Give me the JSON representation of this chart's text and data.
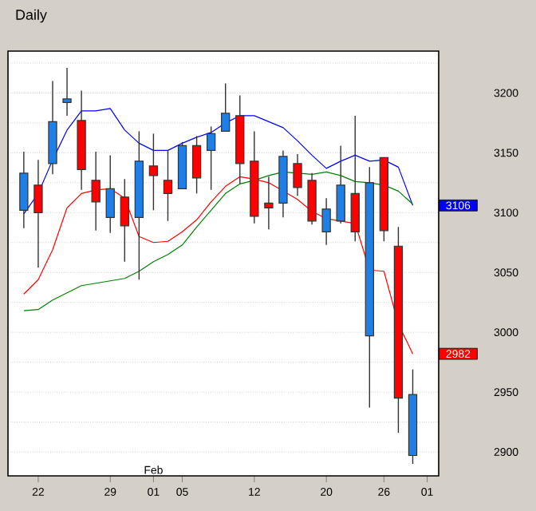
{
  "chart_data": {
    "type": "candlestick",
    "title": "Daily",
    "categories": [
      null,
      "22",
      null,
      null,
      null,
      null,
      "29",
      null,
      null,
      "01",
      null,
      "05",
      null,
      null,
      null,
      null,
      "12",
      null,
      null,
      null,
      null,
      "20",
      null,
      null,
      null,
      "26",
      null,
      null,
      "01"
    ],
    "ohlc": [
      [
        3102,
        3151,
        3087,
        3133
      ],
      [
        3123,
        3144,
        3054,
        3100
      ],
      [
        3141,
        3210,
        3132,
        3176
      ],
      [
        3192,
        3221,
        3181,
        3195
      ],
      [
        3177,
        3202,
        3119,
        3136
      ],
      [
        3127,
        3151,
        3085,
        3109
      ],
      [
        3096,
        3148,
        3083,
        3120
      ],
      [
        3113,
        3128,
        3059,
        3089
      ],
      [
        3096,
        3168,
        3044,
        3143
      ],
      [
        3139,
        3166,
        3102,
        3131
      ],
      [
        3127,
        3152,
        3093,
        3116
      ],
      [
        3120,
        3159,
        3120,
        3156
      ],
      [
        3156,
        3164,
        3116,
        3129
      ],
      [
        3152,
        3172,
        3119,
        3166
      ],
      [
        3168,
        3208,
        3168,
        3183
      ],
      [
        3181,
        3198,
        3124,
        3141
      ],
      [
        3143,
        3168,
        3091,
        3097
      ],
      [
        3108,
        3130,
        3086,
        3104
      ],
      [
        3108,
        3152,
        3096,
        3147
      ],
      [
        3141,
        3149,
        3114,
        3121
      ],
      [
        3127,
        3133,
        3090,
        3093
      ],
      [
        3084,
        3112,
        3073,
        3103
      ],
      [
        3093,
        3156,
        3091,
        3123
      ],
      [
        3116,
        3181,
        3076,
        3084
      ],
      [
        2997,
        3138,
        2937,
        3125
      ],
      [
        3146,
        3146,
        3076,
        3085
      ],
      [
        3072,
        3088,
        2916,
        2945
      ],
      [
        2897,
        2969,
        2890,
        2948
      ],
      null
    ],
    "colors": [
      "#1e7fe6",
      "#ff0000",
      "#1e7fe6",
      "#1e7fe6",
      "#ff0000",
      "#ff0000",
      "#1e7fe6",
      "#ff0000",
      "#1e7fe6",
      "#ff0000",
      "#ff0000",
      "#1e7fe6",
      "#ff0000",
      "#1e7fe6",
      "#1e7fe6",
      "#ff0000",
      "#ff0000",
      "#ff0000",
      "#1e7fe6",
      "#ff0000",
      "#ff0000",
      "#1e7fe6",
      "#1e7fe6",
      "#ff0000",
      "#1e7fe6",
      "#ff0000",
      "#ff0000",
      "#1e7fe6",
      null
    ],
    "series": [
      {
        "type": "line",
        "color": "#0000ff",
        "values": [
          3099,
          3116,
          3144,
          3169,
          3185,
          3185,
          3187,
          3169,
          3158,
          3152,
          3152,
          3158,
          3163,
          3167,
          3175,
          3181,
          3181,
          3176,
          3171,
          3160,
          3148,
          3137,
          3143,
          3148,
          3143,
          3144,
          3138,
          3106,
          null
        ]
      },
      {
        "type": "line",
        "color": "#ff0000",
        "values": [
          3032,
          3044,
          3069,
          3104,
          3116,
          3119,
          3120,
          3112,
          3080,
          3075,
          3076,
          3084,
          3094,
          3109,
          3122,
          3130,
          3128,
          3125,
          3118,
          3111,
          3101,
          3095,
          3093,
          3091,
          3052,
          3051,
          3007,
          2982,
          null
        ]
      },
      {
        "type": "line",
        "color": "#008000",
        "values": [
          3018,
          3019,
          3027,
          3033,
          3039,
          3041,
          3043,
          3045,
          3051,
          3059,
          3065,
          3073,
          3088,
          3102,
          3116,
          3124,
          3127,
          3131,
          3134,
          3133,
          3132,
          3134,
          3131,
          3126,
          3125,
          3123,
          3118,
          3107,
          null
        ]
      }
    ],
    "ylim": [
      2880,
      3235
    ],
    "yticks": [
      2900,
      {
        "value": 2925,
        "label": null
      },
      2950,
      {
        "value": 2975,
        "label": null
      },
      3000,
      {
        "value": 3025,
        "label": null
      },
      3050,
      {
        "value": 3075,
        "label": null
      },
      3100,
      {
        "value": 3125,
        "label": null
      },
      3150,
      {
        "value": 3175,
        "label": null
      },
      3200,
      {
        "value": 3225,
        "label": null
      }
    ],
    "grid": "y",
    "annotations": [
      "Feb",
      "3106",
      "2982"
    ]
  }
}
